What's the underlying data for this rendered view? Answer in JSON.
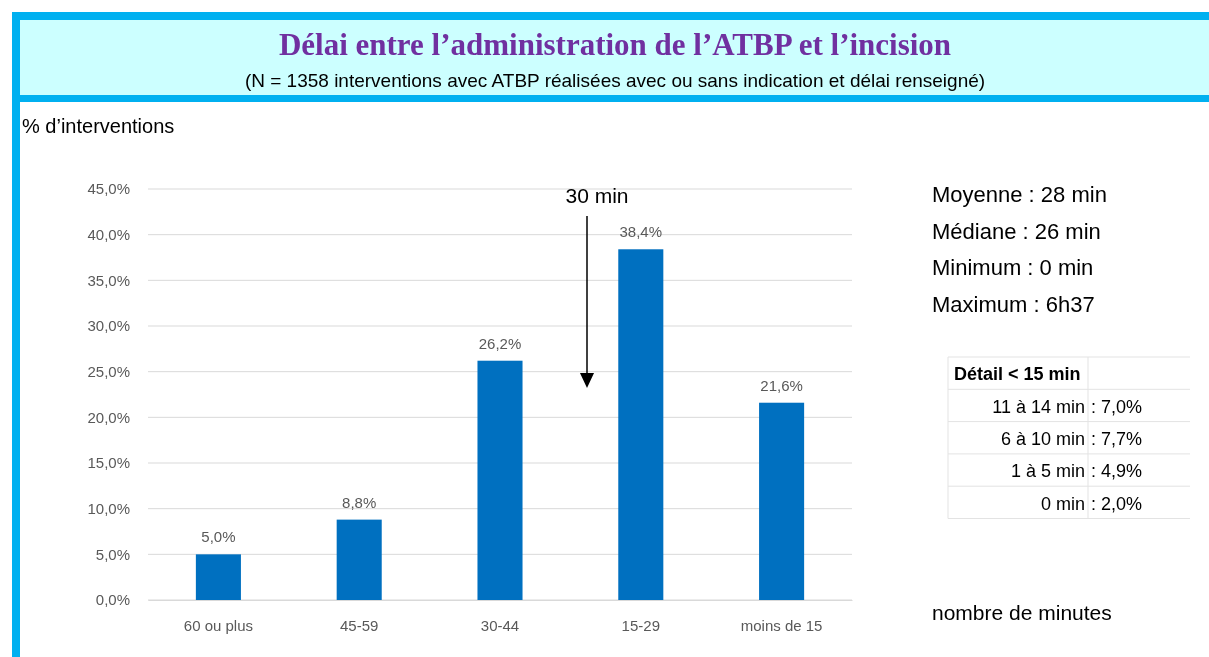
{
  "chart_data": {
    "type": "bar",
    "title": "Délai entre l’administration de l’ATBP et l’incision",
    "subtitle": "(N = 1358 interventions avec ATBP réalisées avec ou sans indication et délai renseigné)",
    "ylabel": "% d’interventions",
    "xlabel": "nombre de minutes",
    "categories": [
      "60 ou plus",
      "45-59",
      "30-44",
      "15-29",
      "moins de 15"
    ],
    "values": [
      5.0,
      8.8,
      26.2,
      38.4,
      21.6
    ],
    "color": "#0070c0",
    "value_labels": [
      "5,0%",
      "8,8%",
      "26,2%",
      "38,4%",
      "21,6%"
    ],
    "ylim": [
      0,
      45
    ],
    "yticks": [
      {
        "value": 0,
        "label": "0,0%"
      },
      {
        "value": 5,
        "label": "5,0%"
      },
      {
        "value": 10,
        "label": "10,0%"
      },
      {
        "value": 15,
        "label": "15,0%"
      },
      {
        "value": 20,
        "label": "20,0%"
      },
      {
        "value": 25,
        "label": "25,0%"
      },
      {
        "value": 30,
        "label": "30,0%"
      },
      {
        "value": 35,
        "label": "35,0%"
      },
      {
        "value": 40,
        "label": "40,0%"
      },
      {
        "value": 45,
        "label": "45,0%"
      }
    ],
    "grid": "y",
    "annotations": [
      "30 min",
      "Moyenne : 28 min",
      "Médiane : 26 min",
      "Minimum : 0 min",
      "Maximum : 6h37",
      "Détail < 15 min",
      "11 à 14 min",
      ": 7,0%",
      "6 à 10 min",
      ": 7,7%",
      "1 à 5 min",
      ": 4,9%",
      "0 min",
      ": 2,0%"
    ]
  }
}
